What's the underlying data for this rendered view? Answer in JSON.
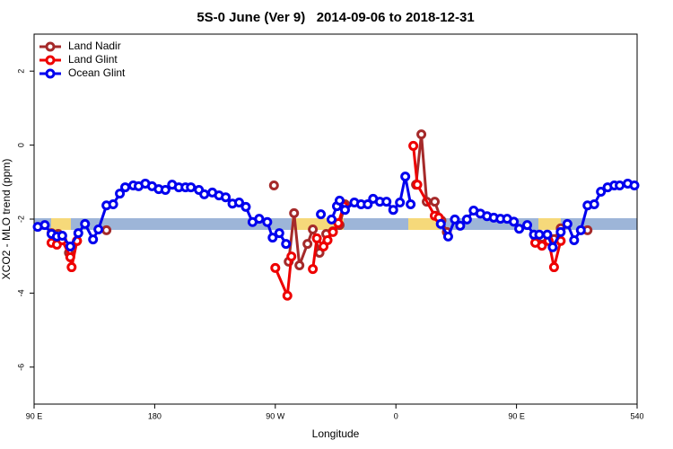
{
  "chart_data": {
    "type": "line",
    "title": "5S-0 June (Ver 9)   2014-09-06 to 2018-12-31",
    "x_label": "Longitude",
    "y_label": "XCO2 - MLO trend (ppm)",
    "xlim": [
      90,
      540
    ],
    "ylim": [
      -7,
      3
    ],
    "xticks": [
      {
        "value": 90,
        "label": "90 E"
      },
      180,
      {
        "value": 270,
        "label": "90 W"
      },
      {
        "value": 360,
        "label": "0"
      },
      {
        "value": 450,
        "label": "90 E"
      },
      540
    ],
    "yticks": [
      2,
      0,
      -2,
      -4,
      -6
    ],
    "legend": "top-left",
    "series": [
      {
        "name": "Land Nadir",
        "color": "#a52a2a",
        "x": [
          103,
          108,
          116,
          122,
          133,
          144,
          200,
          269,
          275,
          280,
          284,
          288,
          294,
          298,
          303,
          308,
          313,
          318,
          322,
          350,
          375,
          379,
          383,
          389,
          394,
          398,
          430,
          464,
          469,
          478,
          483,
          493,
          503
        ],
        "values": [
          -2.38,
          -2.4,
          -2.91,
          -2.59,
          null,
          -2.3,
          null,
          -1.09,
          null,
          -3.15,
          -1.84,
          -3.25,
          -2.67,
          -2.28,
          -2.91,
          -2.4,
          -2.33,
          -2.16,
          -1.6,
          null,
          -1.07,
          0.29,
          -1.53,
          -1.53,
          -2.04,
          -2.35,
          null,
          -2.47,
          -2.5,
          -2.54,
          -2.25,
          null,
          -2.3
        ]
      },
      {
        "name": "Land Glint",
        "color": "#ee0000",
        "x": [
          103,
          107,
          111,
          117,
          118,
          122,
          200,
          270,
          279,
          282,
          290,
          298,
          301,
          306,
          309,
          313,
          317,
          321,
          350,
          373,
          376,
          389,
          392,
          430,
          464,
          469,
          474,
          478,
          483
        ],
        "values": [
          -2.64,
          -2.69,
          -2.57,
          -3.03,
          -3.3,
          -2.59,
          null,
          -3.32,
          -4.07,
          -3.01,
          null,
          -3.35,
          -2.52,
          -2.74,
          -2.57,
          -2.35,
          -2.11,
          -1.65,
          null,
          -0.02,
          -1.07,
          -1.91,
          -1.96,
          null,
          -2.64,
          -2.72,
          -2.59,
          -3.3,
          -2.59
        ]
      },
      {
        "name": "Ocean Glint",
        "color": "#0000ee",
        "x": [
          92.7,
          98,
          103,
          107,
          111,
          117,
          123,
          128,
          134,
          138,
          144,
          149,
          154,
          158,
          164,
          168,
          173,
          178,
          183,
          188,
          193,
          198,
          203,
          207,
          213,
          217,
          223,
          228,
          233,
          238,
          243,
          248,
          253,
          258,
          264,
          268,
          273,
          278,
          291,
          304,
          308,
          312,
          316,
          318,
          322,
          329,
          334,
          339,
          343,
          348,
          353,
          358,
          363,
          367,
          371,
          382,
          393.5,
          399,
          404,
          408,
          413,
          418,
          423,
          428,
          433,
          438,
          443,
          448,
          452,
          458,
          463,
          467,
          473,
          477,
          483,
          488,
          493,
          498,
          503,
          508,
          513,
          518,
          523,
          527,
          533,
          538
        ],
        "values": [
          -2.21,
          -2.16,
          -2.4,
          -2.47,
          -2.45,
          -2.74,
          -2.38,
          -2.13,
          -2.55,
          -2.28,
          -1.63,
          -1.6,
          -1.31,
          -1.14,
          -1.09,
          -1.11,
          -1.04,
          -1.11,
          -1.19,
          -1.21,
          -1.07,
          -1.14,
          -1.14,
          -1.14,
          -1.21,
          -1.33,
          -1.28,
          -1.36,
          -1.41,
          -1.58,
          -1.55,
          -1.67,
          -2.08,
          -1.99,
          -2.08,
          -2.5,
          -2.38,
          -2.67,
          null,
          -1.87,
          null,
          -2.01,
          -1.65,
          -1.5,
          -1.75,
          -1.55,
          -1.6,
          -1.6,
          -1.45,
          -1.53,
          -1.53,
          -1.75,
          -1.55,
          -0.85,
          -1.6,
          null,
          -2.13,
          -2.47,
          -2.01,
          -2.18,
          -2.01,
          -1.77,
          -1.85,
          -1.92,
          -1.96,
          -1.99,
          -1.99,
          -2.07,
          -2.26,
          -2.16,
          -2.42,
          -2.42,
          -2.42,
          -2.76,
          -2.35,
          -2.13,
          -2.57,
          -2.3,
          -1.63,
          -1.6,
          -1.26,
          -1.14,
          -1.09,
          -1.09,
          -1.04,
          -1.09
        ]
      }
    ]
  }
}
